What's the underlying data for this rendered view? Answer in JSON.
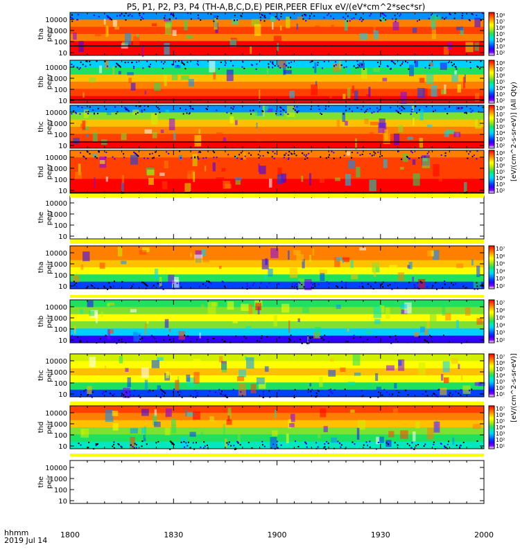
{
  "title": "P5, P1, P2, P3, P4 (TH-A,B,C,D,E) PEIR,PEER EFlux eV/(eV*cm^2*sec*sr)",
  "chart_data": {
    "type": "heatmap",
    "title": "P5, P1, P2, P3, P4 (TH-A,B,C,D,E) PEIR,PEER EFlux eV/(eV*cm^2*sec*sr)",
    "x_axis": {
      "label_line1": "hhmm",
      "label_line2": "2019 Jul 14",
      "ticks": [
        "1800",
        "1830",
        "1900",
        "1930",
        "2000"
      ]
    },
    "y_ticks": [
      "10000",
      "1000",
      "100",
      "10"
    ],
    "y_scale": "log",
    "colorbar_label_electrons": "[eV/(cm^2-s-sr-eV)] (All Qty)",
    "colorbar_label_ions": "[eV/(cm^2-s-sr-eV)]",
    "panels": [
      {
        "probe": "tha",
        "species": "peer",
        "label1": "tha",
        "label2": "peer",
        "has_data": true,
        "cb_ticks": [
          "10⁸",
          "10⁷",
          "10⁶",
          "10⁵",
          "10⁴",
          "10³",
          "10²"
        ]
      },
      {
        "probe": "thb",
        "species": "peer",
        "label1": "thb",
        "label2": "peer",
        "has_data": true,
        "cb_ticks": [
          "10⁸",
          "10⁷",
          "10⁶",
          "10⁵",
          "10⁴",
          "10³",
          "10²"
        ]
      },
      {
        "probe": "thc",
        "species": "peer",
        "label1": "thc",
        "label2": "peer",
        "has_data": true,
        "cb_ticks": [
          "10⁸",
          "10⁷",
          "10⁶",
          "10⁵",
          "10⁴",
          "10³",
          "10²"
        ]
      },
      {
        "probe": "thd",
        "species": "peer",
        "label1": "thd",
        "label2": "peer",
        "has_data": true,
        "cb_ticks": [
          "10⁸",
          "10⁷",
          "10⁶",
          "10⁵",
          "10⁴",
          "10³",
          "10²"
        ]
      },
      {
        "probe": "the",
        "species": "peer",
        "label1": "the",
        "label2": "peer",
        "has_data": false,
        "cb_ticks": []
      },
      {
        "probe": "tha",
        "species": "peir",
        "label1": "tha",
        "label2": "peir",
        "has_data": true,
        "cb_ticks": [
          "10⁷",
          "10⁶",
          "10⁵",
          "10⁴",
          "10³",
          "10²"
        ]
      },
      {
        "probe": "thb",
        "species": "peir",
        "label1": "thb",
        "label2": "peir",
        "has_data": true,
        "cb_ticks": [
          "10⁷",
          "10⁶",
          "10⁵",
          "10⁴",
          "10³",
          "10²"
        ]
      },
      {
        "probe": "thc",
        "species": "peir",
        "label1": "thc",
        "label2": "peir",
        "has_data": true,
        "cb_ticks": [
          "10⁷",
          "10⁶",
          "10⁵",
          "10⁴",
          "10³",
          "10²",
          "10¹"
        ]
      },
      {
        "probe": "thd",
        "species": "peir",
        "label1": "thd",
        "label2": "peir",
        "has_data": true,
        "cb_ticks": [
          "10⁷",
          "10⁶",
          "10⁵",
          "10⁴",
          "10³",
          "10²",
          "10¹"
        ]
      },
      {
        "probe": "the",
        "species": "peir",
        "label1": "the",
        "label2": "peir",
        "has_data": false,
        "cb_ticks": []
      }
    ],
    "colormap": [
      "#ffffff",
      "#7f00ff",
      "#3000ff",
      "#0040ff",
      "#0090ff",
      "#00d0ff",
      "#00e8c0",
      "#20e060",
      "#80e030",
      "#d0f000",
      "#ffff00",
      "#ffc000",
      "#ff8000",
      "#ff4000",
      "#ff0000"
    ]
  }
}
